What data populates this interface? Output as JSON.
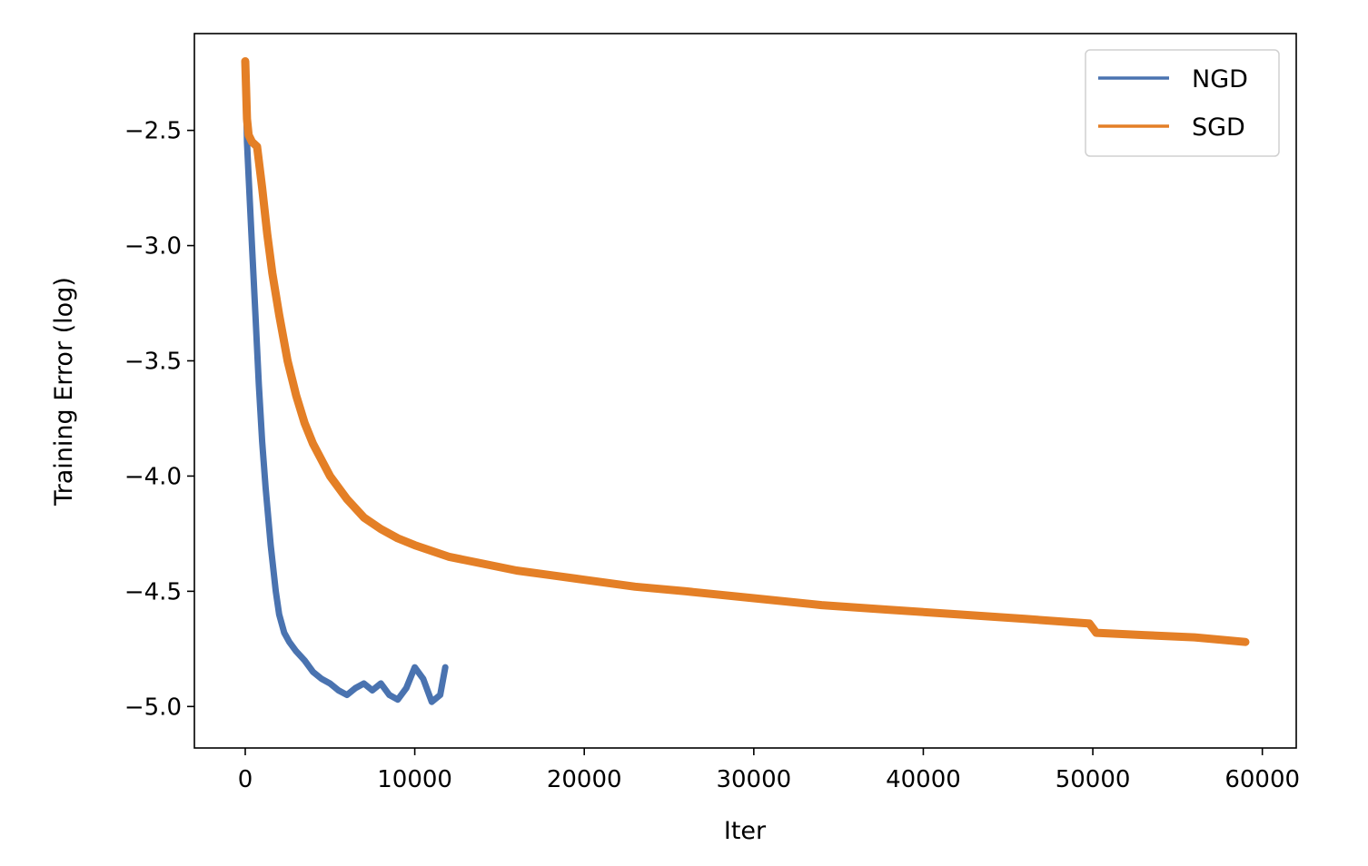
{
  "chart_data": {
    "type": "line",
    "title": "",
    "xlabel": "Iter",
    "ylabel": "Training Error (log)",
    "xlim": [
      -3000,
      62000
    ],
    "ylim": [
      -5.18,
      -2.08
    ],
    "xticks": [
      0,
      10000,
      20000,
      30000,
      40000,
      50000,
      60000
    ],
    "xtick_labels": [
      "0",
      "10000",
      "20000",
      "30000",
      "40000",
      "50000",
      "60000"
    ],
    "yticks": [
      -2.5,
      -3.0,
      -3.5,
      -4.0,
      -4.5,
      -5.0
    ],
    "ytick_labels": [
      "−2.5",
      "−3.0",
      "−3.5",
      "−4.0",
      "−4.5",
      "−5.0"
    ],
    "grid": false,
    "legend_position": "top-right",
    "series": [
      {
        "name": "NGD",
        "color": "#4a73b0",
        "x": [
          0,
          100,
          200,
          400,
          600,
          800,
          1000,
          1200,
          1500,
          1800,
          2000,
          2300,
          2600,
          3000,
          3500,
          4000,
          4500,
          5000,
          5500,
          6000,
          6500,
          7000,
          7500,
          8000,
          8500,
          9000,
          9500,
          10000,
          10500,
          11000,
          11500,
          11800
        ],
        "y": [
          -2.2,
          -2.55,
          -2.7,
          -3.0,
          -3.3,
          -3.6,
          -3.85,
          -4.05,
          -4.3,
          -4.5,
          -4.6,
          -4.68,
          -4.72,
          -4.76,
          -4.8,
          -4.85,
          -4.88,
          -4.9,
          -4.93,
          -4.95,
          -4.92,
          -4.9,
          -4.93,
          -4.9,
          -4.95,
          -4.97,
          -4.92,
          -4.83,
          -4.88,
          -4.98,
          -4.95,
          -4.83
        ]
      },
      {
        "name": "SGD",
        "color": "#e47f26",
        "x": [
          0,
          100,
          200,
          400,
          700,
          1000,
          1300,
          1600,
          2000,
          2500,
          3000,
          3500,
          4000,
          5000,
          6000,
          7000,
          8000,
          9000,
          10000,
          12000,
          14000,
          16000,
          18000,
          20000,
          23000,
          26000,
          30000,
          34000,
          38000,
          42000,
          46000,
          49800,
          50200,
          53000,
          56000,
          59000
        ],
        "y": [
          -2.2,
          -2.45,
          -2.52,
          -2.55,
          -2.57,
          -2.75,
          -2.95,
          -3.12,
          -3.3,
          -3.5,
          -3.65,
          -3.77,
          -3.86,
          -4.0,
          -4.1,
          -4.18,
          -4.23,
          -4.27,
          -4.3,
          -4.35,
          -4.38,
          -4.41,
          -4.43,
          -4.45,
          -4.48,
          -4.5,
          -4.53,
          -4.56,
          -4.58,
          -4.6,
          -4.62,
          -4.64,
          -4.68,
          -4.69,
          -4.7,
          -4.72
        ]
      }
    ]
  }
}
